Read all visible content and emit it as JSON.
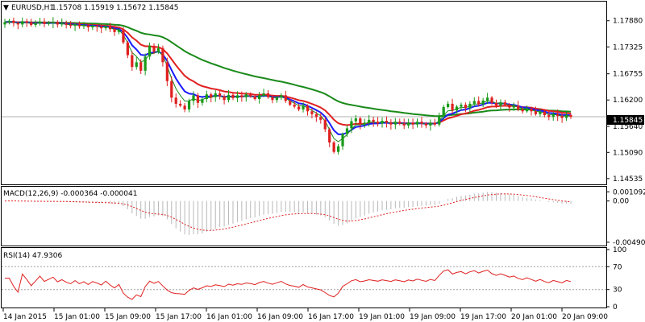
{
  "header": {
    "symbol": "EURUSD,H1",
    "ohlc": "1.15708 1.15919 1.15672 1.15845"
  },
  "price_panel": {
    "y_ticks": [
      "1.17880",
      "1.17325",
      "1.16755",
      "1.16200",
      "1.15640",
      "1.15090",
      "1.14535"
    ],
    "y_tick_values": [
      1.1788,
      1.17325,
      1.16755,
      1.162,
      1.1564,
      1.1509,
      1.14535
    ],
    "ylim": [
      1.1443,
      1.1808
    ],
    "current_price_label": "1.15845",
    "current_price": 1.15845
  },
  "macd_panel": {
    "label": "MACD(12,26,9) -0.000364 -0.000041",
    "y_ticks": [
      "0.001092",
      "0.00",
      "-0.004904"
    ],
    "y_tick_values": [
      0.001092,
      0.0,
      -0.004904
    ],
    "ylim": [
      -0.0052,
      0.0015
    ]
  },
  "rsi_panel": {
    "label": "RSI(14) 47.9306",
    "y_ticks": [
      "100",
      "70",
      "30",
      "0"
    ],
    "y_tick_values": [
      100,
      70,
      30,
      0
    ],
    "levels": [
      70,
      30
    ],
    "ylim": [
      0,
      100
    ]
  },
  "x_axis": {
    "labels": [
      "14 Jan 2015",
      "15 Jan 01:00",
      "15 Jan 09:00",
      "15 Jan 17:00",
      "16 Jan 01:00",
      "16 Jan 09:00",
      "16 Jan 17:00",
      "19 Jan 01:00",
      "19 Jan 09:00",
      "19 Jan 17:00",
      "20 Jan 01:00",
      "20 Jan 09:00"
    ]
  },
  "colors": {
    "bull": "#1a9a1a",
    "bear": "#e02020",
    "ma_fast": "#1a1aff",
    "ma_mid": "#e02020",
    "ma_slow": "#1a8a1a",
    "ma_thin": "#1a8a1a",
    "macd_hist": "#b8b8b8",
    "macd_signal": "#e02020",
    "rsi_line": "#e02020",
    "level_line": "#a0a0a0",
    "price_box": "#000000"
  },
  "chart_data": {
    "type": "candlestick",
    "bars_close": [
      1.1785,
      1.1788,
      1.1783,
      1.178,
      1.1787,
      1.1784,
      1.1779,
      1.1782,
      1.1786,
      1.1781,
      1.1783,
      1.1785,
      1.178,
      1.1782,
      1.1779,
      1.1777,
      1.178,
      1.1776,
      1.1778,
      1.1774,
      1.1777,
      1.1775,
      1.1772,
      1.1776,
      1.177,
      1.1764,
      1.1768,
      1.1742,
      1.1715,
      1.169,
      1.17,
      1.1682,
      1.1712,
      1.1735,
      1.1722,
      1.173,
      1.17,
      1.166,
      1.1625,
      1.1612,
      1.1608,
      1.16,
      1.1618,
      1.163,
      1.1614,
      1.1622,
      1.1632,
      1.1626,
      1.1634,
      1.1628,
      1.162,
      1.1631,
      1.1624,
      1.163,
      1.1626,
      1.1632,
      1.1628,
      1.1622,
      1.163,
      1.1634,
      1.1626,
      1.162,
      1.1625,
      1.163,
      1.1618,
      1.161,
      1.1606,
      1.16,
      1.1608,
      1.1596,
      1.159,
      1.1584,
      1.1578,
      1.1558,
      1.153,
      1.151,
      1.1522,
      1.1548,
      1.156,
      1.1575,
      1.1581,
      1.1568,
      1.1572,
      1.1578,
      1.1574,
      1.157,
      1.1576,
      1.1572,
      1.1568,
      1.1574,
      1.157,
      1.1566,
      1.1572,
      1.1568,
      1.1574,
      1.157,
      1.1566,
      1.1572,
      1.1568,
      1.1585,
      1.1605,
      1.1612,
      1.1598,
      1.1606,
      1.161,
      1.1603,
      1.1612,
      1.1618,
      1.1611,
      1.1619,
      1.1625,
      1.1614,
      1.1608,
      1.1615,
      1.161,
      1.1604,
      1.1608,
      1.16,
      1.1596,
      1.1602,
      1.1596,
      1.159,
      1.1595,
      1.1588,
      1.1584,
      1.159,
      1.1586,
      1.1582,
      1.1588,
      1.15845
    ]
  }
}
